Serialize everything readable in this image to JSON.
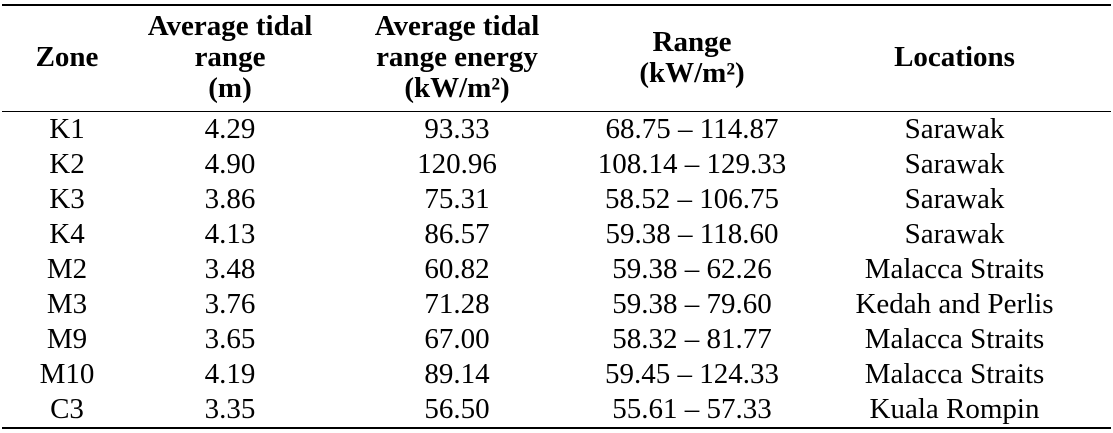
{
  "colors": {
    "background": "#ffffff",
    "text": "#000000",
    "rule": "#000000"
  },
  "table": {
    "columns": [
      {
        "label": "Zone"
      },
      {
        "label": "Average tidal\nrange\n(m)"
      },
      {
        "label": "Average tidal\nrange energy\n(kW/m²)"
      },
      {
        "label": "Range\n(kW/m²)"
      },
      {
        "label": "Locations"
      }
    ],
    "rows": [
      {
        "zone": "K1",
        "avg_tidal_range_m": "4.29",
        "avg_tidal_range_energy": "93.33",
        "range_kw_m2": "68.75 – 114.87",
        "locations": "Sarawak"
      },
      {
        "zone": "K2",
        "avg_tidal_range_m": "4.90",
        "avg_tidal_range_energy": "120.96",
        "range_kw_m2": "108.14 – 129.33",
        "locations": "Sarawak"
      },
      {
        "zone": "K3",
        "avg_tidal_range_m": "3.86",
        "avg_tidal_range_energy": "75.31",
        "range_kw_m2": "58.52 – 106.75",
        "locations": "Sarawak"
      },
      {
        "zone": "K4",
        "avg_tidal_range_m": "4.13",
        "avg_tidal_range_energy": "86.57",
        "range_kw_m2": "59.38 – 118.60",
        "locations": "Sarawak"
      },
      {
        "zone": "M2",
        "avg_tidal_range_m": "3.48",
        "avg_tidal_range_energy": "60.82",
        "range_kw_m2": "59.38 – 62.26",
        "locations": "Malacca Straits"
      },
      {
        "zone": "M3",
        "avg_tidal_range_m": "3.76",
        "avg_tidal_range_energy": "71.28",
        "range_kw_m2": "59.38 – 79.60",
        "locations": "Kedah and Perlis"
      },
      {
        "zone": "M9",
        "avg_tidal_range_m": "3.65",
        "avg_tidal_range_energy": "67.00",
        "range_kw_m2": "58.32 – 81.77",
        "locations": "Malacca Straits"
      },
      {
        "zone": "M10",
        "avg_tidal_range_m": "4.19",
        "avg_tidal_range_energy": "89.14",
        "range_kw_m2": "59.45 – 124.33",
        "locations": "Malacca Straits"
      },
      {
        "zone": "C3",
        "avg_tidal_range_m": "3.35",
        "avg_tidal_range_energy": "56.50",
        "range_kw_m2": "55.61 – 57.33",
        "locations": "Kuala Rompin"
      }
    ]
  }
}
